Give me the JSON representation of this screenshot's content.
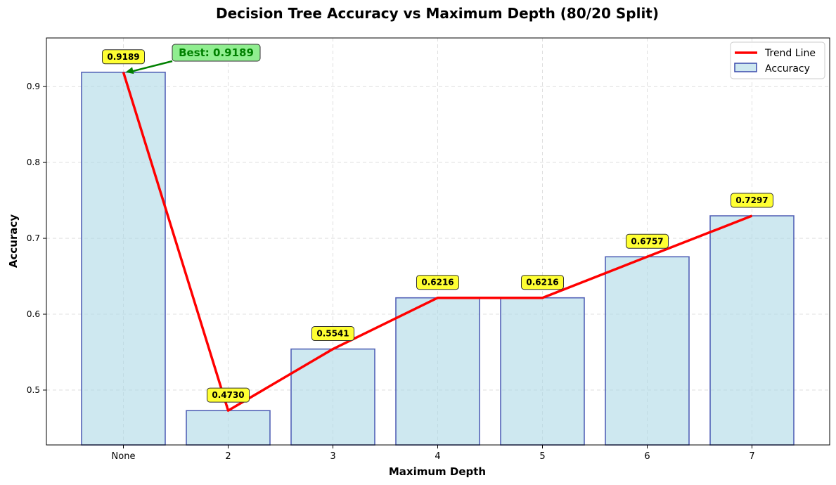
{
  "chart_data": {
    "type": "bar",
    "title": "Decision Tree Accuracy vs Maximum Depth (80/20 Split)",
    "xlabel": "Maximum Depth",
    "ylabel": "Accuracy",
    "categories": [
      "None",
      "2",
      "3",
      "4",
      "5",
      "6",
      "7"
    ],
    "value_labels": [
      "0.9189",
      "0.4730",
      "0.5541",
      "0.6216",
      "0.6216",
      "0.6757",
      "0.7297"
    ],
    "series": [
      {
        "name": "Accuracy",
        "values": [
          0.9189,
          0.473,
          0.5541,
          0.6216,
          0.6216,
          0.6757,
          0.7297
        ],
        "color": "#add8e6",
        "edge_color": "#3949ab"
      },
      {
        "name": "Trend Line",
        "type": "line",
        "values": [
          0.9189,
          0.473,
          0.5541,
          0.6216,
          0.6216,
          0.6757,
          0.7297
        ],
        "color": "#ff0000"
      }
    ],
    "yticks": [
      0.5,
      0.6,
      0.7,
      0.8,
      0.9
    ],
    "ytick_labels": [
      "0.5",
      "0.6",
      "0.7",
      "0.8",
      "0.9"
    ],
    "ylim": [
      0.4277,
      0.9641
    ],
    "grid": true,
    "legend_position": "top-right",
    "annotation": {
      "text": "Best: 0.9189",
      "target_category": "None",
      "color": "#008000",
      "box_color": "#90ee90"
    },
    "label_box_color": "#ffff33"
  }
}
